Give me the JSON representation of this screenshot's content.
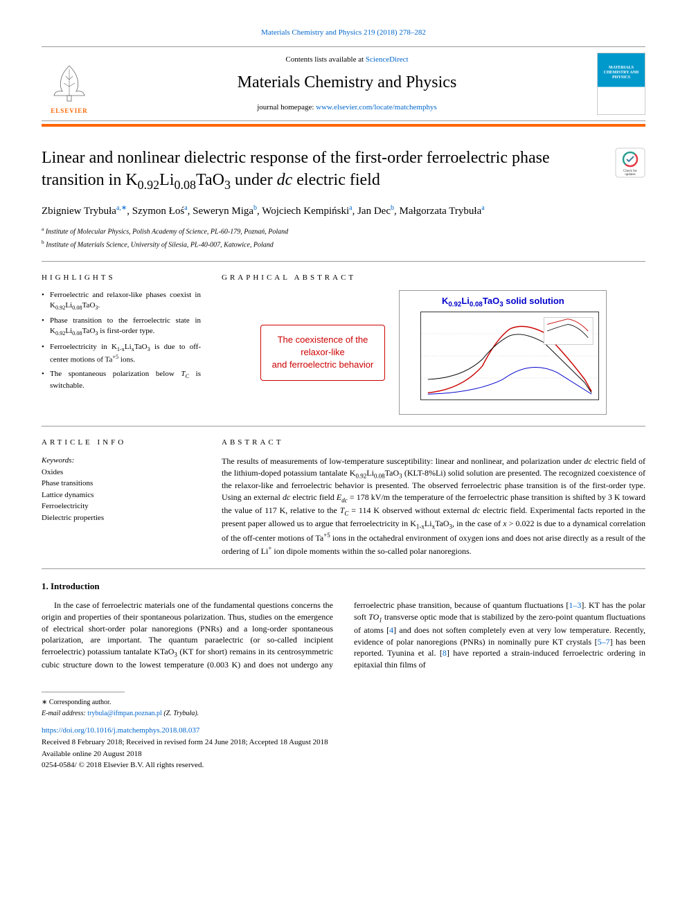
{
  "top_link": {
    "text": "Materials Chemistry and Physics 219 (2018) 278–282",
    "href": "#"
  },
  "header": {
    "contents_prefix": "Contents lists available at ",
    "contents_link": "ScienceDirect",
    "journal_name": "Materials Chemistry and Physics",
    "homepage_prefix": "journal homepage: ",
    "homepage_link": "www.elsevier.com/locate/matchemphys",
    "publisher": "ELSEVIER",
    "cover_title": "MATERIALS CHEMISTRY AND PHYSICS"
  },
  "title_parts": {
    "pre": "Linear and nonlinear dielectric response of the first-order ferroelectric phase transition in K",
    "sub1": "0.92",
    "mid1": "Li",
    "sub2": "0.08",
    "mid2": "TaO",
    "sub3": "3",
    "post": " under ",
    "italic": "dc",
    "end": " electric field"
  },
  "check_badge": {
    "label": "Check for updates"
  },
  "authors": [
    {
      "name": "Zbigniew Trybuła",
      "sup": "a,∗"
    },
    {
      "name": "Szymon Łoś",
      "sup": "a"
    },
    {
      "name": "Seweryn Miga",
      "sup": "b"
    },
    {
      "name": "Wojciech Kempiński",
      "sup": "a"
    },
    {
      "name": "Jan Dec",
      "sup": "b"
    },
    {
      "name": "Małgorzata Trybuła",
      "sup": "a"
    }
  ],
  "affiliations": [
    {
      "sup": "a",
      "text": "Institute of Molecular Physics, Polish Academy of Science, PL-60-179, Poznań, Poland"
    },
    {
      "sup": "b",
      "text": "Institute of Materials Science, University of Silesia, PL-40-007, Katowice, Poland"
    }
  ],
  "highlights": {
    "label": "HIGHLIGHTS",
    "items_html": [
      "Ferroelectric and relaxor-like phases coexist in K<sub>0.92</sub>Li<sub>0.08</sub>TaO<sub>3</sub>.",
      "Phase transition to the ferroelectric state in K<sub>0.92</sub>Li<sub>0.08</sub>TaO<sub>3</sub> is first-order type.",
      "Ferroelectricity in K<sub>1-x</sub>Li<sub>x</sub>TaO<sub>3</sub> is due to off-center motions of Ta<sup>+5</sup> ions.",
      "The spontaneous polarization below <i>T<sub>C</sub></i> is switchable."
    ]
  },
  "graphical_abstract": {
    "label": "GRAPHICAL ABSTRACT",
    "box_line1": "The coexistence of the",
    "box_line2": "relaxor-like",
    "box_line3": "and ferroelectric behavior",
    "chart_title_html": "K<sub>0.92</sub>Li<sub>0.08</sub>TaO<sub>3</sub> solid solution",
    "chart": {
      "curve1_color": "#cc0000",
      "curve2_color": "#000000",
      "curve3_color": "#0000cc",
      "bg": "#ffffff",
      "border": "#333333"
    }
  },
  "article_info": {
    "label": "ARTICLE INFO",
    "keywords_label": "Keywords:",
    "keywords": [
      "Oxides",
      "Phase transitions",
      "Lattice dynamics",
      "Ferroelectricity",
      "Dielectric properties"
    ]
  },
  "abstract": {
    "label": "ABSTRACT",
    "text_html": "The results of measurements of low-temperature susceptibility: linear and nonlinear, and polarization under <i>dc</i> electric field of the lithium-doped potassium tantalate K<sub>0.92</sub>Li<sub>0.08</sub>TaO<sub>3</sub> (KLT-8%Li) solid solution are presented. The recognized coexistence of the relaxor-like and ferroelectric behavior is presented. The observed ferroelectric phase transition is of the first-order type. Using an external <i>dc</i> electric field <i>E<sub>dc</sub></i> = 178 kV/m the temperature of the ferroelectric phase transition is shifted by 3 K toward the value of 117 K, relative to the <i>T<sub>C</sub></i> = 114 K observed without external <i>dc</i> electric field. Experimental facts reported in the present paper allowed us to argue that ferroelectricity in K<sub>1-x</sub>Li<sub>x</sub>TaO<sub>3</sub>, in the case of <i>x</i> > 0.022 is due to a dynamical correlation of the off-center motions of Ta<sup>+5</sup> ions in the octahedral environment of oxygen ions and does not arise directly as a result of the ordering of Li<sup>+</sup> ion dipole moments within the so-called polar nanoregions."
  },
  "introduction": {
    "heading": "1. Introduction",
    "para_html": "In the case of ferroelectric materials one of the fundamental questions concerns the origin and properties of their spontaneous polarization. Thus, studies on the emergence of electrical short-order polar nanoregions (PNRs) and a long-order spontaneous polarization, are important. The quantum paraelectric (or so-called incipient ferroelectric) potassium tantalate KTaO<sub>3</sub> (KT for short) remains in its centrosymmetric cubic structure down to the lowest temperature (0.003 K) and does not undergo any ferroelectric phase transition, because of quantum fluctuations [<a href='#' style='color:#0066cc;text-decoration:none'>1–3</a>]. KT has the polar soft <i>TO<sub>1</sub></i> transverse optic mode that is stabilized by the zero-point quantum fluctuations of atoms [<a href='#' style='color:#0066cc;text-decoration:none'>4</a>] and does not soften completely even at very low temperature. Recently, evidence of polar nanoregions (PNRs) in nominally pure KT crystals [<a href='#' style='color:#0066cc;text-decoration:none'>5–7</a>] has been reported. Tyunina et al. [<a href='#' style='color:#0066cc;text-decoration:none'>8</a>] have reported a strain-induced ferroelectric ordering in epitaxial thin films of"
  },
  "footer": {
    "corr": "∗ Corresponding author.",
    "email_label": "E-mail address: ",
    "email": "trybula@ifmpan.poznan.pl",
    "email_suffix": " (Z. Trybuła).",
    "doi": "https://doi.org/10.1016/j.matchemphys.2018.08.037",
    "dates": "Received 8 February 2018; Received in revised form 24 June 2018; Accepted 18 August 2018",
    "online": "Available online 20 August 2018",
    "copyright": "0254-0584/ © 2018 Elsevier B.V. All rights reserved."
  },
  "colors": {
    "link": "#0066cc",
    "orange": "#ff6600",
    "red": "#cc0000",
    "blue": "#0000cc"
  }
}
